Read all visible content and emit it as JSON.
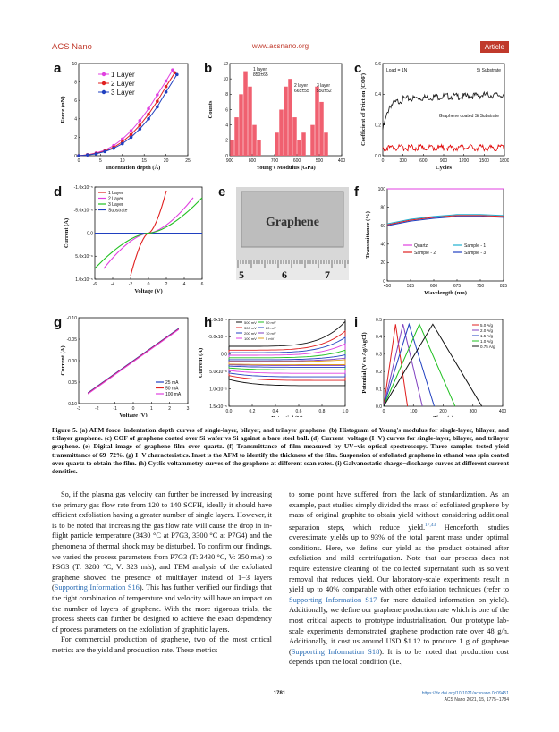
{
  "header": {
    "journal": "ACS Nano",
    "url": "www.acsnano.org",
    "type": "Article"
  },
  "figure": {
    "panel_letters": [
      "a",
      "b",
      "c",
      "d",
      "e",
      "f",
      "g",
      "h",
      "i"
    ],
    "e_photo_text": "Graphene",
    "e_ruler_numbers": [
      "5",
      "6",
      "7"
    ]
  },
  "chart_data": [
    {
      "panel": "a",
      "type": "line",
      "xlabel": "Indentation depth (Å)",
      "ylabel": "Force (nN)",
      "xlim": [
        0,
        25
      ],
      "ylim": [
        0,
        10
      ],
      "xticks": [
        "0",
        "5",
        "10",
        "15",
        "20",
        "25"
      ],
      "yticks": [
        "0",
        "2",
        "4",
        "6",
        "8",
        "10"
      ],
      "series": [
        {
          "name": "1 Layer",
          "color": "#e040e0",
          "x": [
            0,
            2,
            4,
            6,
            8,
            10,
            12,
            14,
            16,
            18,
            20,
            21.5
          ],
          "y": [
            0,
            0.1,
            0.3,
            0.6,
            1.1,
            1.8,
            2.7,
            3.8,
            5.1,
            6.6,
            8.1,
            9.3
          ]
        },
        {
          "name": "2 Layer",
          "color": "#e02020",
          "x": [
            0,
            2,
            4,
            6,
            8,
            10,
            12,
            14,
            16,
            18,
            20,
            22
          ],
          "y": [
            0,
            0.1,
            0.25,
            0.5,
            0.9,
            1.5,
            2.3,
            3.3,
            4.5,
            5.9,
            7.5,
            9.0
          ]
        },
        {
          "name": "3 Layer",
          "color": "#2040c0",
          "x": [
            0,
            2,
            4,
            6,
            8,
            10,
            12,
            14,
            16,
            18,
            20,
            22.5
          ],
          "y": [
            0,
            0.08,
            0.2,
            0.45,
            0.8,
            1.3,
            2.0,
            2.9,
            4.0,
            5.3,
            6.9,
            8.8
          ]
        }
      ]
    },
    {
      "panel": "b",
      "type": "bar",
      "xlabel": "Young's Modulus (GPa)",
      "ylabel": "Counts",
      "xlim": [
        900,
        400
      ],
      "ylim": [
        0,
        12
      ],
      "xticks": [
        "900",
        "800",
        "700",
        "600",
        "500",
        "400"
      ],
      "yticks": [
        "0",
        "2",
        "4",
        "6",
        "8",
        "10",
        "12"
      ],
      "annotations": [
        "1 layer",
        "850±65",
        "2 layer",
        "665±55",
        "3 layer",
        "550±52"
      ],
      "x": [
        890,
        870,
        850,
        830,
        810,
        790,
        770,
        690,
        670,
        650,
        630,
        610,
        590,
        570,
        530,
        510,
        490,
        470
      ],
      "values": [
        2,
        5,
        8,
        11,
        9,
        4,
        2,
        3,
        6,
        9,
        10,
        5,
        2,
        3,
        4,
        9,
        7,
        3
      ]
    },
    {
      "panel": "c",
      "type": "line",
      "xlabel": "Cycles",
      "ylabel": "Coefficient of Friction (COF)",
      "xlim": [
        0,
        1800
      ],
      "ylim": [
        0,
        0.7
      ],
      "xticks": [
        "0",
        "300",
        "600",
        "900",
        "1200",
        "1500",
        "1800"
      ],
      "yticks": [
        "0.0",
        "0.2",
        "0.4",
        "0.6"
      ],
      "annotations": [
        "Load = 1N",
        "Si Substrate",
        "Graphene coated Si Substrate"
      ],
      "series": [
        {
          "name": "Si Substrate",
          "color": "#111111",
          "x": [
            0,
            100,
            300,
            600,
            900,
            1200,
            1500,
            1800
          ],
          "y": [
            0.2,
            0.38,
            0.43,
            0.44,
            0.45,
            0.45,
            0.46,
            0.46
          ]
        },
        {
          "name": "Graphene coated Si Substrate",
          "color": "#e00000",
          "x": [
            0,
            100,
            300,
            600,
            900,
            1200,
            1500,
            1800
          ],
          "y": [
            0.06,
            0.06,
            0.06,
            0.06,
            0.06,
            0.06,
            0.06,
            0.06
          ]
        }
      ]
    },
    {
      "panel": "d",
      "type": "line",
      "xlabel": "Voltage (V)",
      "ylabel": "Current (A)",
      "xlim": [
        -6,
        6
      ],
      "ylim": [
        -1.3e-05,
        1.3e-05
      ],
      "xticks": [
        "-6",
        "-4",
        "-2",
        "0",
        "2",
        "4",
        "6"
      ],
      "yticks": [
        "1.0x10⁻⁵",
        "5.0x10⁻⁶",
        "0.0",
        "-5.0x10⁻⁶",
        "-1.0x10⁻⁵"
      ],
      "series": [
        {
          "name": "1 Layer",
          "color": "#e02020",
          "x": [
            -2,
            0,
            2
          ],
          "y": [
            -1.2e-05,
            0,
            1.2e-05
          ]
        },
        {
          "name": "2 Layer",
          "color": "#e040e0",
          "x": [
            -5,
            0,
            5
          ],
          "y": [
            -1e-05,
            0,
            1e-05
          ]
        },
        {
          "name": "3 Layer",
          "color": "#20c020",
          "x": [
            -6,
            0,
            6
          ],
          "y": [
            -1e-05,
            0,
            1e-05
          ]
        },
        {
          "name": "Substrate",
          "color": "#2040c0",
          "x": [
            -6,
            0,
            6
          ],
          "y": [
            0,
            0,
            0
          ]
        }
      ]
    },
    {
      "panel": "f",
      "type": "line",
      "xlabel": "Wavelength (nm)",
      "ylabel": "Transmittance (%)",
      "xlim": [
        450,
        825
      ],
      "ylim": [
        0,
        100
      ],
      "xticks": [
        "450",
        "525",
        "600",
        "675",
        "750",
        "825"
      ],
      "yticks": [
        "0",
        "20",
        "40",
        "60",
        "80",
        "100"
      ],
      "series": [
        {
          "name": "Quartz",
          "color": "#e040e0",
          "x": [
            450,
            825
          ],
          "y": [
            100,
            100
          ]
        },
        {
          "name": "Sample - 1",
          "color": "#20b0d0",
          "x": [
            450,
            525,
            600,
            675,
            750,
            825
          ],
          "y": [
            62,
            67,
            70,
            72,
            72,
            71
          ]
        },
        {
          "name": "Sample - 2",
          "color": "#e02020",
          "x": [
            450,
            525,
            600,
            675,
            750,
            825
          ],
          "y": [
            61,
            66,
            69,
            71,
            71,
            70
          ]
        },
        {
          "name": "Sample - 3",
          "color": "#2040c0",
          "x": [
            450,
            525,
            600,
            675,
            750,
            825
          ],
          "y": [
            60,
            65,
            68,
            70,
            70,
            69
          ]
        }
      ]
    },
    {
      "panel": "g",
      "type": "line",
      "xlabel": "Voltage (V)",
      "ylabel": "Current (A)",
      "xlim": [
        -3,
        3
      ],
      "ylim": [
        -0.12,
        0.12
      ],
      "xticks": [
        "-3",
        "-2",
        "-1",
        "0",
        "1",
        "2",
        "3"
      ],
      "yticks": [
        "0.10",
        "0.05",
        "0.00",
        "-0.05",
        "-0.10"
      ],
      "series": [
        {
          "name": "25 mA",
          "color": "#2040c0",
          "x": [
            -2.5,
            2.5
          ],
          "y": [
            -0.09,
            0.09
          ]
        },
        {
          "name": "50 mA",
          "color": "#e02020",
          "x": [
            -2.5,
            2.5
          ],
          "y": [
            -0.09,
            0.09
          ]
        },
        {
          "name": "100 mA",
          "color": "#e040e0",
          "x": [
            -2.5,
            2.5
          ],
          "y": [
            -0.09,
            0.09
          ]
        }
      ]
    },
    {
      "panel": "h",
      "type": "line",
      "xlabel": "Potential (V)",
      "ylabel": "Current (A)",
      "xlim": [
        0,
        1
      ],
      "ylim": [
        -1.5e-05,
        1.5e-05
      ],
      "xticks": [
        "0.0",
        "0.2",
        "0.4",
        "0.6",
        "0.8",
        "1.0"
      ],
      "yticks": [
        "1.5x10⁻⁵",
        "1.0x10⁻⁵",
        "5.0x10⁻⁶",
        "0.0",
        "-5.0x10⁻⁶",
        "-1.0x10⁻⁵"
      ],
      "series_names": [
        "500 mV",
        "300 mV",
        "200 mV",
        "100 mV",
        "50 mV",
        "20 mV",
        "10 mV",
        "5 mV"
      ],
      "series_colors": [
        "#111111",
        "#e02020",
        "#2040c0",
        "#e040e0",
        "#20c020",
        "#2040c0",
        "#8040c0",
        "#e0a020"
      ],
      "amplitude": [
        1.3e-05,
        1e-05,
        8e-06,
        6e-06,
        4e-06,
        2.5e-06,
        1.5e-06,
        1e-06
      ]
    },
    {
      "panel": "i",
      "type": "line",
      "xlabel": "Time (s)",
      "ylabel": "Potential (V vs Ag/AgCl)",
      "xlim": [
        0,
        400
      ],
      "ylim": [
        0,
        0.55
      ],
      "xticks": [
        "0",
        "100",
        "200",
        "300",
        "400"
      ],
      "yticks": [
        "0.0",
        "0.1",
        "0.2",
        "0.3",
        "0.4",
        "0.5"
      ],
      "series_names": [
        "5.0 A/g",
        "2.0 A/g",
        "1.5 A/g",
        "1.0 A/g",
        "0.75 A/g"
      ],
      "series_colors": [
        "#e02020",
        "#8040c0",
        "#2040c0",
        "#20c020",
        "#111111"
      ],
      "durations": [
        80,
        130,
        170,
        240,
        330
      ]
    }
  ],
  "caption": {
    "label": "Figure 5.",
    "text": "(a) AFM force−indentation depth curves of single-layer, bilayer, and trilayer graphene. (b) Histogram of Young's modulus for single-layer, bilayer, and trilayer graphene. (c) COF of graphene coated over Si wafer vs Si against a bare steel ball. (d) Current−voltage (I−V) curves for single-layer, bilayer, and trilayer graphene. (e) Digital image of graphene film over quartz. (f) Transmittance of film measured by UV−vis optical spectroscopy. Three samples tested yield transmittance of 69−72%. (g) I−V characteristics. Inset is the AFM to identify the thickness of the film. Suspension of exfoliated graphene in ethanol was spin coated over quartz to obtain the film. (h) Cyclic voltammetry curves of the graphene at different scan rates. (i) Galvanostatic charge−discharge curves at different current densities."
  },
  "col1": {
    "p1": "So, if the plasma gas velocity can further be increased by increasing the primary gas flow rate from 120 to 140 SCFH, ideally it should have efficient exfoliation having a greater number of single layers. However, it is to be noted that increasing the gas flow rate will cause the drop in in-flight particle temperature (3430 °C at P7G3, 3300 °C at P7G4) and the phenomena of thermal shock may be disturbed. To confirm our findings, we varied the process parameters from P7G3 (T: 3430 °C, V: 350 m/s) to PSG3 (T: 3280 °C, V: 323 m/s), and TEM analysis of the exfoliated graphene showed the presence of multilayer instead of 1−3 layers (",
    "p1_link": "Supporting Information S16",
    "p1_end": "). This has further verified our findings that the right combination of temperature and velocity will have an impact on the number of layers of graphene. With the more rigorous trials, the process sheets can further be designed to achieve the exact dependency of process parameters on the exfoliation of graphitic layers.",
    "p2": "For commercial production of graphene, two of the most critical metrics are the yield and production rate. These metrics"
  },
  "col2": {
    "p1a": "to some point have suffered from the lack of standardization. As an example, past studies simply divided the mass of exfoliated graphene by mass of original graphite to obtain yield without considering additional separation steps, which reduce yield.",
    "p1_ref": "17,43",
    "p1b": " Henceforth, studies overestimate yields up to 93% of the total parent mass under optimal conditions. Here, we define our yield as the product obtained after exfoliation and mild centrifugation. Note that our process does not require extensive cleaning of the collected supernatant such as solvent removal that reduces yield. Our laboratory-scale experiments result in yield up to 40% comparable with other exfoliation techniques (refer to ",
    "p1_link1": "Supporting Information S17",
    "p1c": " for more detailed information on yield). Additionally, we define our graphene production rate which is one of the most critical aspects to prototype industrialization. Our prototype lab-scale experiments demonstrated graphene production rate over 48 g/h. Additionally, it cost us around USD $1.12 to produce 1 g of graphene (",
    "p1_link2": "Supporting Information S18",
    "p1d": "). It is to be noted that production cost depends upon the local condition (i.e.,"
  },
  "footer": {
    "page": "1781",
    "doi": "https://dx.doi.org/10.1021/acsnano.0c09451",
    "cite": "ACS Nano 2021, 15, 1775−1784"
  }
}
